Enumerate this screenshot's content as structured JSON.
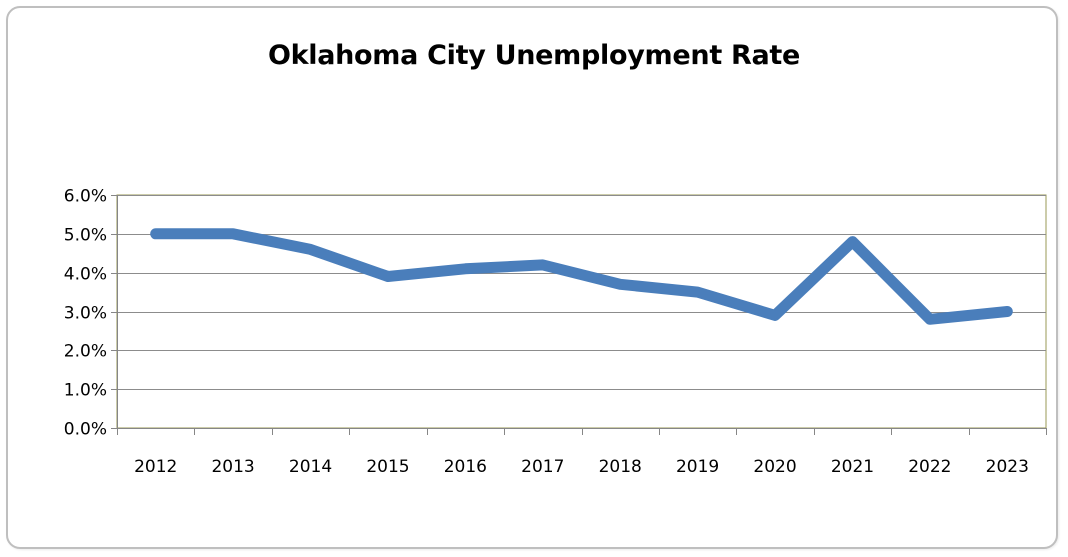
{
  "chart_data": {
    "type": "line",
    "title": "Oklahoma City Unemployment Rate",
    "xlabel": "",
    "ylabel": "",
    "categories": [
      "2012",
      "2013",
      "2014",
      "2015",
      "2016",
      "2017",
      "2018",
      "2019",
      "2020",
      "2021",
      "2022",
      "2023"
    ],
    "series": [
      {
        "values": [
          5.0,
          5.0,
          4.6,
          3.9,
          4.1,
          4.2,
          3.7,
          3.5,
          2.9,
          4.8,
          2.8,
          3.0
        ]
      }
    ],
    "ylim": [
      0,
      6
    ],
    "y_ticks": [
      "0.0%",
      "1.0%",
      "2.0%",
      "3.0%",
      "4.0%",
      "5.0%",
      "6.0%"
    ],
    "grid": true,
    "legend": "none",
    "colors": {
      "line": "#4a7ebb",
      "grid": "#8c8c8c",
      "axis": "#868686",
      "plot_border": "#9a9a55"
    }
  }
}
